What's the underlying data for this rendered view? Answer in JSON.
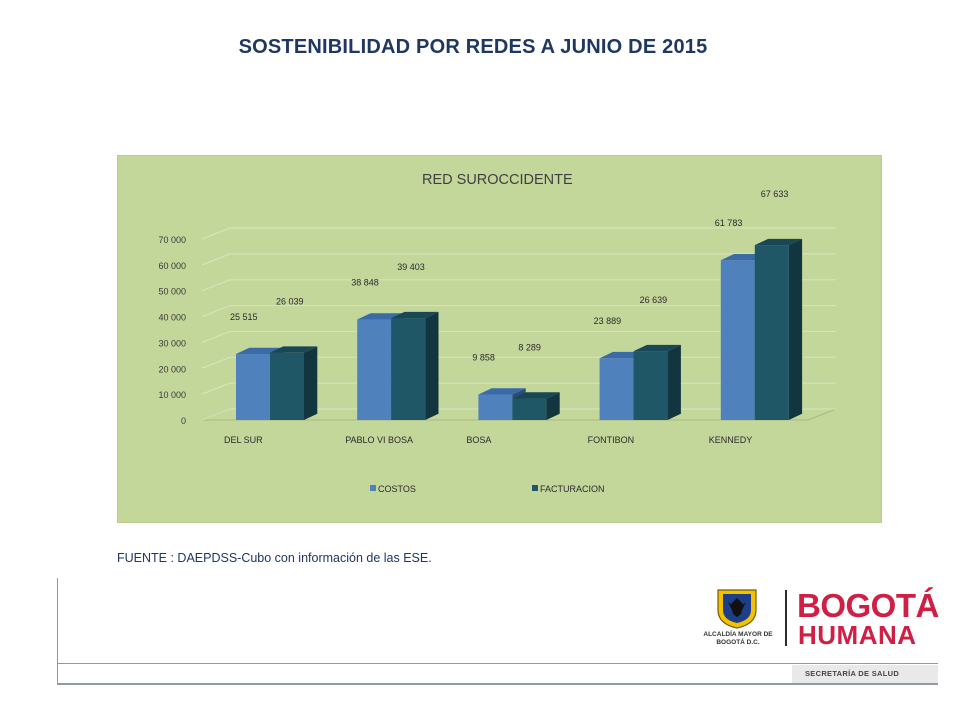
{
  "slide": {
    "title": "SOSTENIBILIDAD POR REDES A JUNIO DE 2015",
    "source": "FUENTE : DAEPDSS-Cubo con información de las ESE."
  },
  "footer": {
    "department": "SECRETARÍA DE SALUD",
    "logo_caption": "ALCALDÍA MAYOR DE BOGOTÁ D.C.",
    "brand_line1": "BOGOTÁ",
    "brand_line2": "HUMANA"
  },
  "colors": {
    "costos": "#4f81bd",
    "facturacion": "#1f5767",
    "panel_bg": "#c4d79b",
    "brand": "#cf1f45"
  },
  "chart_data": {
    "type": "bar",
    "title": "RED SUROCCIDENTE",
    "categories": [
      "DEL SUR",
      "PABLO VI BOSA",
      "BOSA",
      "FONTIBON",
      "KENNEDY"
    ],
    "series": [
      {
        "name": "COSTOS",
        "values": [
          25515,
          38848,
          9858,
          23889,
          61783
        ],
        "labels": [
          "25 515",
          "38 848",
          "9 858",
          "23 889",
          "61 783"
        ]
      },
      {
        "name": "FACTURACION",
        "values": [
          26039,
          39403,
          8289,
          26639,
          67633
        ],
        "labels": [
          "26 039",
          "39 403",
          "8 289",
          "26 639",
          "67 633"
        ]
      }
    ],
    "yticks": [
      0,
      10000,
      20000,
      30000,
      40000,
      50000,
      60000,
      70000
    ],
    "ytick_labels": [
      "0",
      "10 000",
      "20 000",
      "30 000",
      "40 000",
      "50 000",
      "60 000",
      "70 000"
    ],
    "ylim": [
      0,
      70000
    ],
    "grid": true,
    "legend_position": "bottom",
    "style": "3d-clustered-column"
  }
}
